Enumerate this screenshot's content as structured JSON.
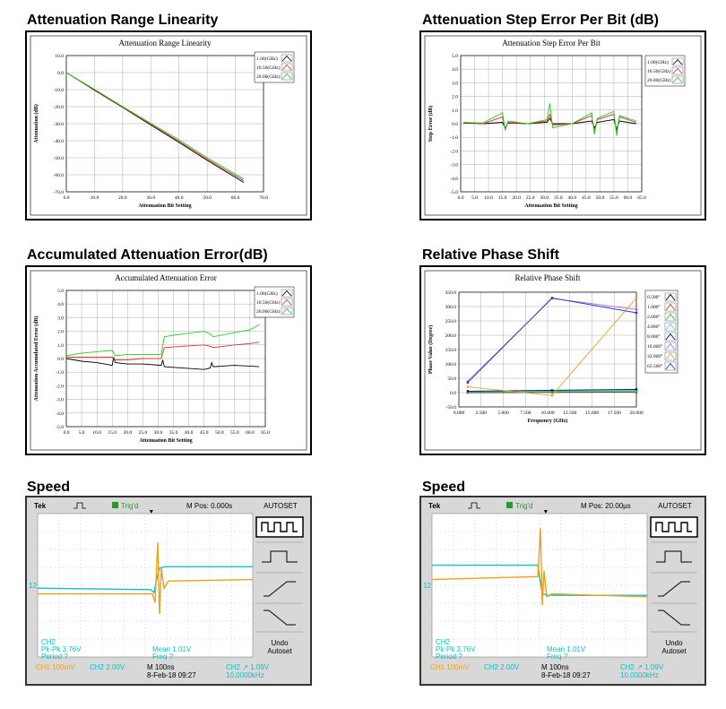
{
  "panels": {
    "p1": {
      "heading": "Attenuation Range Linearity"
    },
    "p2": {
      "heading": "Attenuation Step Error Per Bit (dB)"
    },
    "p3": {
      "heading": "Accumulated Attenuation Error(dB)"
    },
    "p4": {
      "heading": "Relative Phase Shift"
    },
    "p5": {
      "heading": "Speed"
    },
    "p6": {
      "heading": "Speed"
    }
  },
  "colors": {
    "black": "#000000",
    "red": "#e03030",
    "green": "#20d020",
    "cyan": "#40d8e8",
    "navy": "#000080",
    "violet": "#c060e0",
    "orange": "#f0a020",
    "blue": "#2040c0",
    "purple": "#6040c0",
    "scope_cyan": "#10c0c8",
    "scope_orange": "#f0a018"
  },
  "chart_data": [
    {
      "id": "linearity",
      "type": "line",
      "title": "Attenuation Range Linearity",
      "xlabel": "Attenuation Bit Setting",
      "ylabel": "Attenuation (dB)",
      "xlim": [
        0,
        70
      ],
      "ylim": [
        -70,
        10
      ],
      "xticks": [
        "0.0",
        "10.0",
        "20.0",
        "30.0",
        "40.0",
        "50.0",
        "60.0",
        "70.0"
      ],
      "yticks": [
        "10.0",
        "0.0",
        "-10.0",
        "-20.0",
        "-30.0",
        "-40.0",
        "-50.0",
        "-60.0",
        "-70.0"
      ],
      "grid": true,
      "legend": "top-right",
      "series": [
        {
          "name": "1.00(GHz)",
          "color": "#000000",
          "x": [
            0,
            10,
            20,
            30,
            40,
            50,
            63
          ],
          "y": [
            0,
            -10.3,
            -20.5,
            -30.8,
            -41,
            -51.5,
            -64.5
          ]
        },
        {
          "name": "10.50(GHz)",
          "color": "#e03030",
          "x": [
            0,
            10,
            20,
            30,
            40,
            50,
            63
          ],
          "y": [
            0,
            -10,
            -20.2,
            -30.3,
            -40.3,
            -50.8,
            -63.5
          ]
        },
        {
          "name": "20.00(GHz)",
          "color": "#20d020",
          "x": [
            0,
            10,
            20,
            30,
            40,
            50,
            63
          ],
          "y": [
            0,
            -9.8,
            -20,
            -29.8,
            -39.5,
            -50,
            -62.5
          ]
        }
      ]
    },
    {
      "id": "steperror",
      "type": "line",
      "title": "Attenuation Step Error Per Bit",
      "xlabel": "Attenuation Bit Setting",
      "ylabel": "Step Error (dB)",
      "xlim": [
        0,
        65
      ],
      "ylim": [
        -5,
        5
      ],
      "xticks": [
        "0.0",
        "5.0",
        "10.0",
        "15.0",
        "20.0",
        "25.0",
        "30.0",
        "35.0",
        "40.0",
        "45.0",
        "50.0",
        "55.0",
        "60.0",
        "65.0"
      ],
      "yticks": [
        "5.0",
        "4.0",
        "3.0",
        "2.0",
        "1.0",
        "0.0",
        "-1.0",
        "-2.0",
        "-3.0",
        "-4.0",
        "-5.0"
      ],
      "grid": true,
      "legend": "top-right",
      "series": [
        {
          "name": "1.00(GHz)",
          "color": "#000000",
          "x": [
            1,
            8,
            15,
            16,
            17,
            24,
            31,
            32,
            33,
            40,
            47,
            48,
            49,
            55,
            56,
            57,
            63
          ],
          "y": [
            0.05,
            0.0,
            0.1,
            -0.3,
            0.05,
            0.0,
            0.1,
            0.4,
            0.0,
            0.0,
            0.2,
            -0.3,
            0.1,
            0.3,
            -0.4,
            0.2,
            0.0
          ]
        },
        {
          "name": "10.50(GHz)",
          "color": "#e03030",
          "x": [
            1,
            8,
            15,
            16,
            17,
            24,
            31,
            32,
            33,
            40,
            47,
            48,
            49,
            55,
            56,
            57,
            63
          ],
          "y": [
            0.1,
            0.0,
            0.5,
            -0.4,
            0.1,
            0.0,
            0.2,
            0.7,
            -0.1,
            0.0,
            0.6,
            -0.6,
            0.3,
            0.7,
            -0.7,
            0.5,
            0.1
          ]
        },
        {
          "name": "20.00(GHz)",
          "color": "#20d020",
          "x": [
            1,
            8,
            15,
            16,
            17,
            24,
            31,
            32,
            33,
            40,
            47,
            48,
            49,
            55,
            56,
            57,
            63
          ],
          "y": [
            0.1,
            0.05,
            0.8,
            -0.5,
            0.2,
            0.0,
            0.3,
            1.5,
            -0.3,
            0.0,
            0.8,
            -0.8,
            0.4,
            0.9,
            -0.9,
            0.6,
            0.2
          ]
        }
      ]
    },
    {
      "id": "accum",
      "type": "line",
      "title": "Accumulated Attenuation Error",
      "xlabel": "Attenuation Bit Setting",
      "ylabel": "Attenuation Accumulated Error (dB)",
      "xlim": [
        0,
        65
      ],
      "ylim": [
        -5,
        5
      ],
      "xticks": [
        "0.0",
        "5.0",
        "10.0",
        "15.0",
        "20.0",
        "25.0",
        "30.0",
        "35.0",
        "40.0",
        "45.0",
        "50.0",
        "55.0",
        "60.0",
        "65.0"
      ],
      "yticks": [
        "5.0",
        "4.0",
        "3.0",
        "2.0",
        "1.0",
        "0.0",
        "-1.0",
        "-2.0",
        "-3.0",
        "-4.0",
        "-5.0"
      ],
      "grid": true,
      "legend": "top-right",
      "series": [
        {
          "name": "1.00(GHz)",
          "color": "#000000",
          "x": [
            0,
            5,
            10,
            15,
            15.5,
            16,
            20,
            25,
            31,
            31.5,
            32,
            38,
            45,
            47,
            47.5,
            48,
            55,
            63
          ],
          "y": [
            0,
            -0.2,
            -0.3,
            -0.5,
            0.1,
            -0.3,
            -0.4,
            -0.4,
            -0.5,
            -0.1,
            -0.6,
            -0.7,
            -0.8,
            -0.7,
            -0.3,
            -0.6,
            -0.5,
            -0.6
          ]
        },
        {
          "name": "10.50(GHz)",
          "color": "#e03030",
          "x": [
            0,
            5,
            10,
            15,
            16,
            20,
            25,
            31,
            32,
            38,
            45,
            47,
            48,
            55,
            60,
            63
          ],
          "y": [
            0.1,
            0.1,
            0.1,
            0.1,
            -0.1,
            -0.1,
            0,
            0,
            0.8,
            0.9,
            1.0,
            0.9,
            0.8,
            1.0,
            1.1,
            1.2
          ]
        },
        {
          "name": "20.00(GHz)",
          "color": "#20d020",
          "x": [
            0,
            5,
            10,
            15,
            16,
            20,
            25,
            31,
            32,
            38,
            45,
            47,
            48,
            55,
            60,
            63
          ],
          "y": [
            0.2,
            0.4,
            0.5,
            0.6,
            0.2,
            0.3,
            0.3,
            0.3,
            1.6,
            1.8,
            2.0,
            1.8,
            1.6,
            1.9,
            2.1,
            2.5
          ]
        }
      ]
    },
    {
      "id": "phase",
      "type": "line",
      "title": "Relative Phase Shift",
      "xlabel": "Frequency (GHz)",
      "ylabel": "Phase Value (Degree)",
      "xlim": [
        0,
        20
      ],
      "ylim": [
        -50,
        350
      ],
      "xticks": [
        "0.000",
        "2.500",
        "5.000",
        "7.500",
        "10.000",
        "12.500",
        "15.000",
        "17.500",
        "20.000"
      ],
      "yticks": [
        "350.0",
        "300.0",
        "250.0",
        "200.0",
        "150.0",
        "100.0",
        "50.0",
        "0.0",
        "-50.0"
      ],
      "grid": true,
      "legend": "right",
      "series": [
        {
          "name": "0.500°",
          "color": "#000000",
          "x": [
            1,
            10.5,
            20
          ],
          "y": [
            0,
            1,
            2
          ]
        },
        {
          "name": "1.000°",
          "color": "#e03030",
          "x": [
            1,
            10.5,
            20
          ],
          "y": [
            1,
            2,
            3
          ]
        },
        {
          "name": "2.000°",
          "color": "#20d020",
          "x": [
            1,
            10.5,
            20
          ],
          "y": [
            2,
            3,
            4
          ]
        },
        {
          "name": "4.000°",
          "color": "#40d8e8",
          "x": [
            1,
            10.5,
            20
          ],
          "y": [
            4,
            6,
            8
          ]
        },
        {
          "name": "8.000°",
          "color": "#000080",
          "x": [
            1,
            10.5,
            20
          ],
          "y": [
            5,
            8,
            11
          ]
        },
        {
          "name": "16.000°",
          "color": "#c060e0",
          "x": [
            1,
            10.5,
            20
          ],
          "y": [
            40,
            328,
            290
          ]
        },
        {
          "name": "32.000°",
          "color": "#f0a020",
          "x": [
            1,
            10.5,
            20
          ],
          "y": [
            20,
            -10,
            330
          ]
        },
        {
          "name": "63.500°",
          "color": "#2040c0",
          "x": [
            1,
            10.5,
            20
          ],
          "y": [
            35,
            330,
            278
          ]
        }
      ]
    }
  ],
  "scope": {
    "brand": "Tek",
    "trig": "Trig'd",
    "autoset": "AUTOSET",
    "undo1": "Undo",
    "undo2": "Autoset",
    "ch2": "CH2",
    "pkpk": "Pk-Pk 3.76V",
    "period": "Period ?",
    "mean": "Mean 1.01V",
    "freq": "Freq ?",
    "ch1scale": "CH1  100mV",
    "ch2scale": "CH2  2.00V",
    "date": "8-Feb-18 09:27",
    "ch2trig": "CH2 ↗ 1.09V",
    "trigfreq": "10.0000kHz",
    "left": {
      "mpos": "M Pos: 0.000s",
      "timebase": "M 100ns"
    },
    "right": {
      "mpos": "M Pos: 20.00µs",
      "timebase": "M 100ns"
    }
  }
}
